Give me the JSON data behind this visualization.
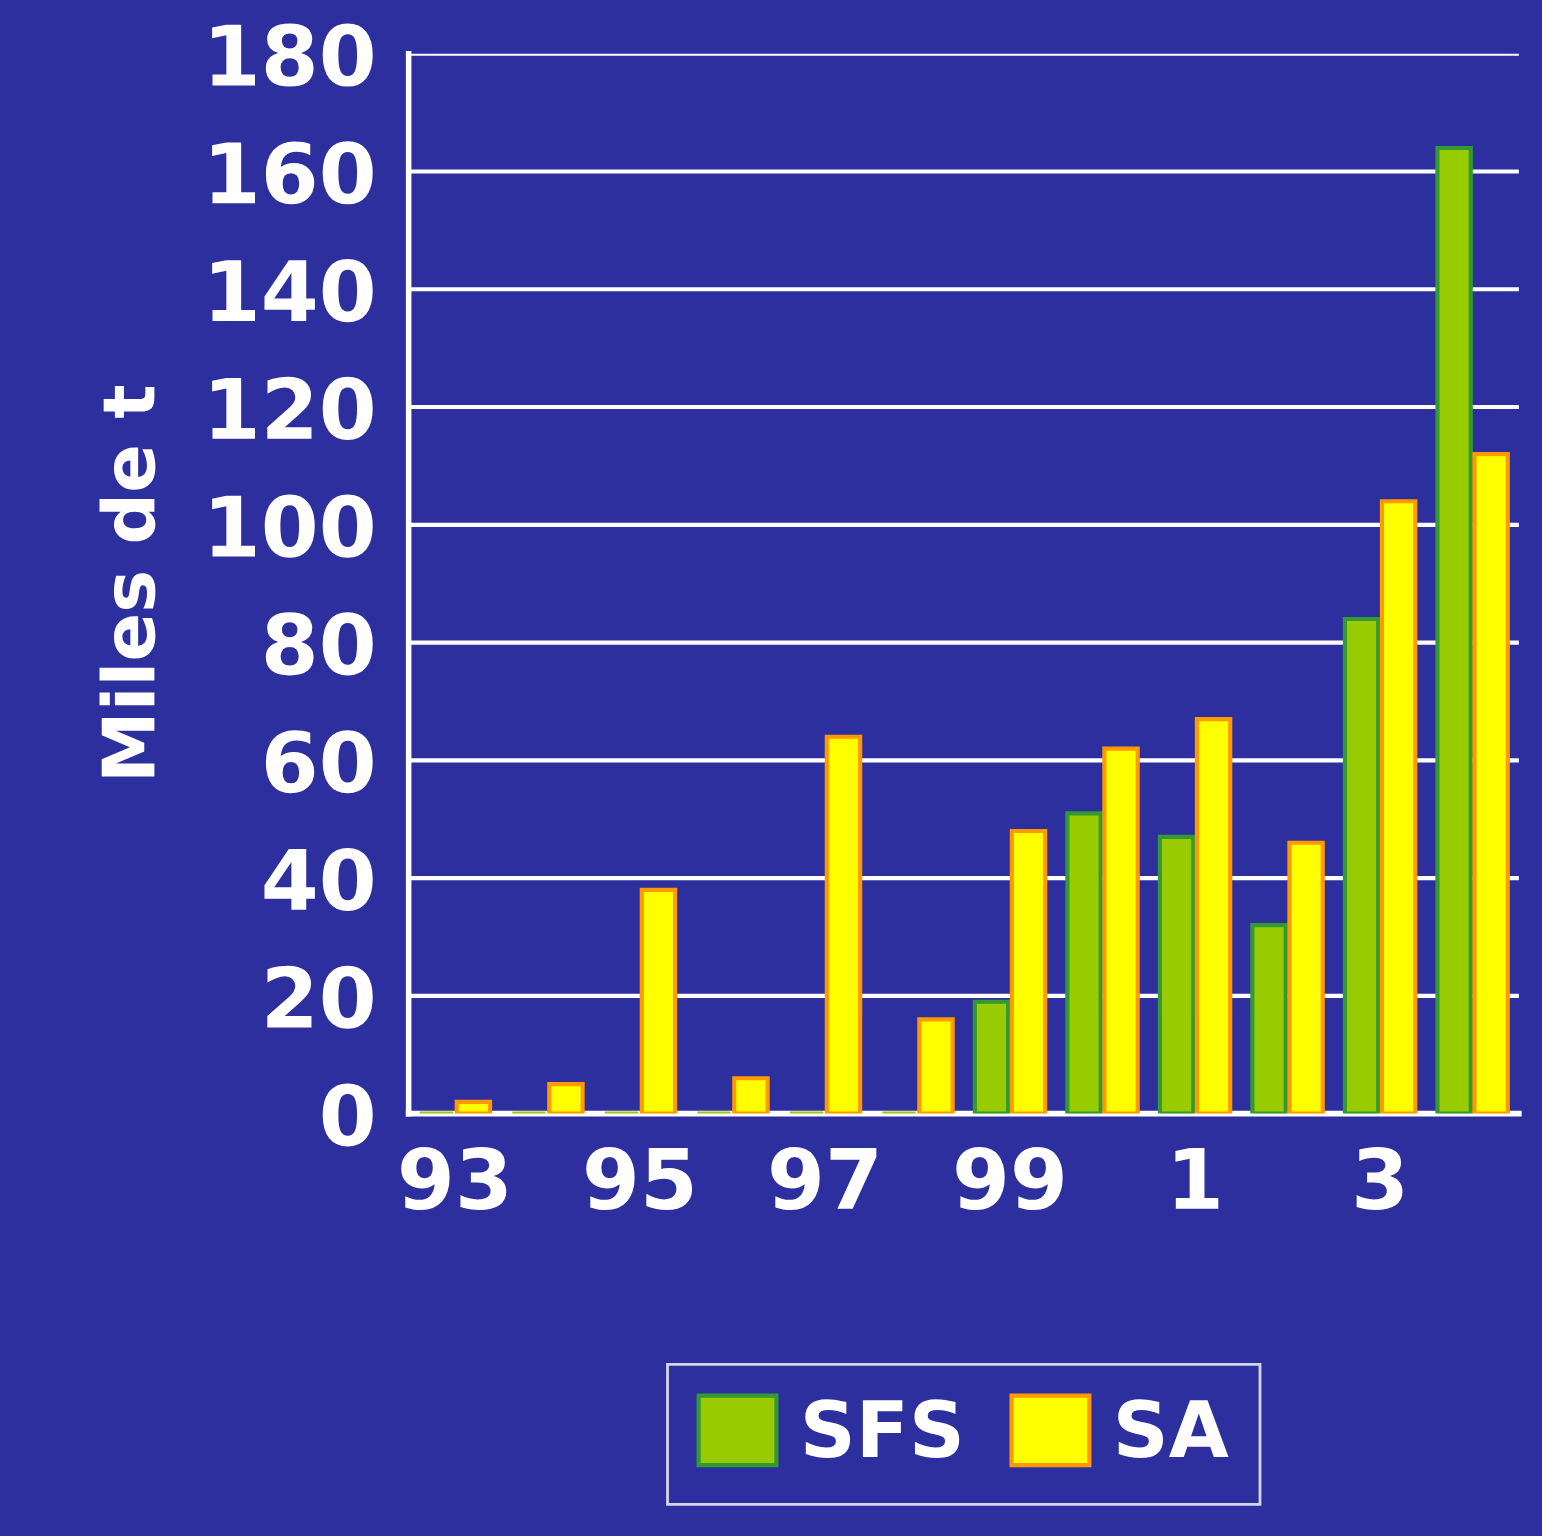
{
  "chart_data": {
    "type": "bar",
    "ylabel": "Miles de t",
    "categories": [
      "93",
      null,
      "95",
      null,
      "97",
      null,
      "99",
      null,
      "1",
      null,
      "3",
      null
    ],
    "series": [
      {
        "name": "SFS",
        "color": "#99cc00",
        "values": [
          0,
          0,
          0,
          0,
          0,
          0,
          19,
          51,
          47,
          32,
          84,
          164
        ]
      },
      {
        "name": "SA",
        "color": "#ffff00",
        "values": [
          2,
          5,
          38,
          6,
          64,
          16,
          48,
          62,
          67,
          46,
          104,
          112
        ]
      }
    ],
    "ylim": [
      0,
      180
    ],
    "yticks": [
      0,
      20,
      40,
      60,
      80,
      100,
      120,
      140,
      160,
      180
    ],
    "grid": "y",
    "legend": "bottom"
  }
}
